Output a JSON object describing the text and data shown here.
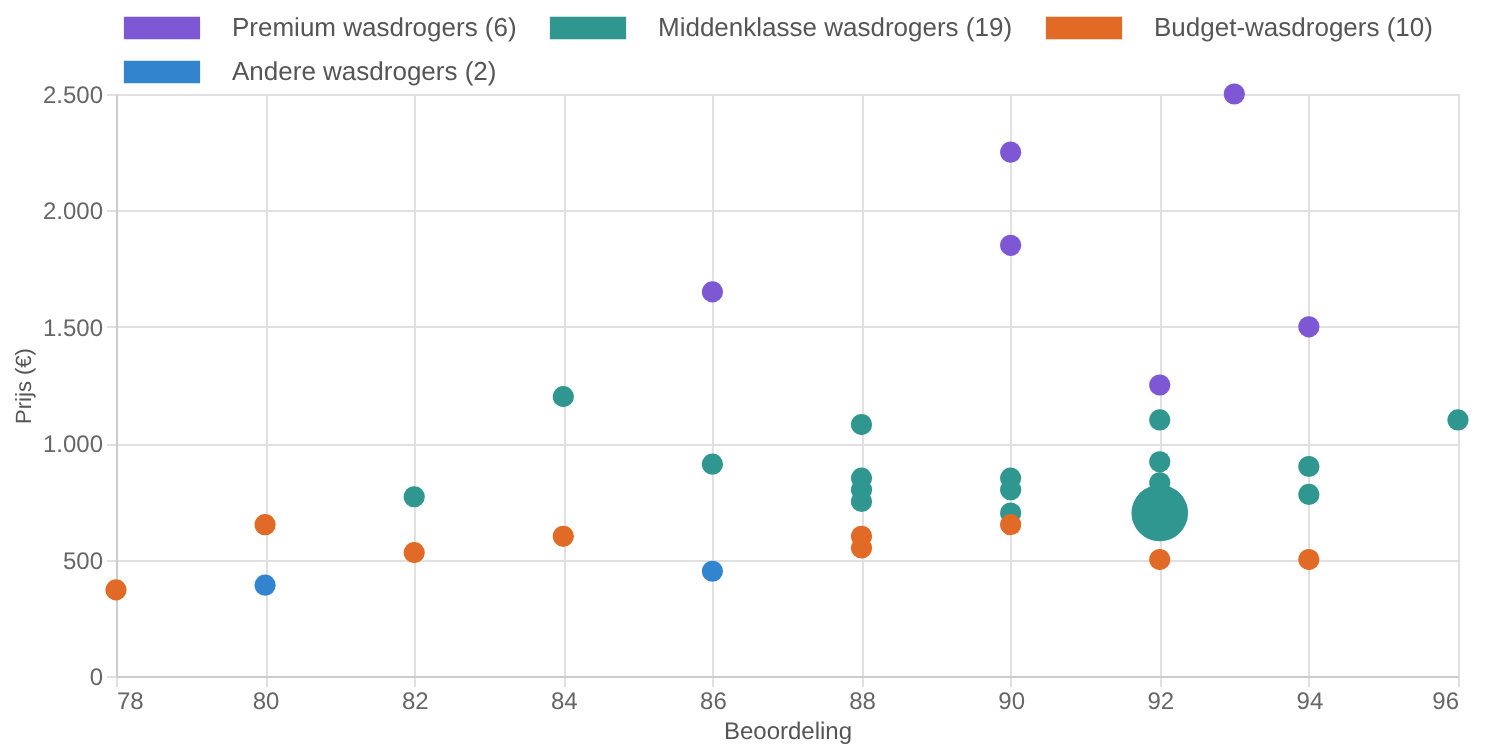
{
  "chart_data": {
    "type": "bubble",
    "xlabel": "Beoordeling",
    "ylabel": "Prijs (€)",
    "xlim": [
      78,
      96
    ],
    "xticks": [
      78,
      80,
      82,
      84,
      86,
      88,
      90,
      92,
      94,
      96
    ],
    "ylim": [
      0,
      2500
    ],
    "yticks": [
      0,
      500,
      {
        "value": 1000,
        "label": "1.000"
      },
      {
        "value": 1500,
        "label": "1.500"
      },
      {
        "value": 2000,
        "label": "2.000"
      },
      {
        "value": 2500,
        "label": "2.500"
      }
    ],
    "grid": true,
    "legend": "top",
    "marker": "circle",
    "series": [
      {
        "name": "Premium wasdrogers (6)",
        "color": "#7e57d5",
        "x": [
          86,
          90,
          90,
          92,
          93,
          94
        ],
        "values": [
          1650,
          2250,
          1850,
          1250,
          2500,
          1500
        ],
        "sizes": [
          0.14,
          0.14,
          0.14,
          0.14,
          0.14,
          0.14
        ]
      },
      {
        "name": "Middenklasse wasdrogers (19)",
        "color": "#2f9690",
        "x": [
          82,
          84,
          86,
          88,
          88,
          88,
          88,
          90,
          90,
          90,
          92,
          92,
          92,
          92,
          94,
          94,
          96
        ],
        "values": [
          770,
          1200,
          910,
          1080,
          850,
          800,
          750,
          850,
          800,
          700,
          1100,
          920,
          830,
          700,
          900,
          780,
          1100
        ],
        "sizes": [
          0.14,
          0.14,
          0.14,
          0.14,
          0.14,
          0.14,
          0.14,
          0.14,
          0.14,
          0.14,
          0.14,
          0.14,
          0.14,
          1,
          0.14,
          0.14,
          0.14
        ]
      },
      {
        "name": "Budget-wasdrogers (10)",
        "color": "#e06a26",
        "x": [
          78,
          80,
          82,
          84,
          88,
          88,
          90,
          92,
          94
        ],
        "values": [
          370,
          650,
          530,
          600,
          600,
          550,
          650,
          500,
          500
        ],
        "sizes": [
          0.14,
          0.14,
          0.14,
          0.14,
          0.14,
          0.14,
          0.14,
          0.14,
          0.14
        ]
      },
      {
        "name": "Andere wasdrogers (2)",
        "color": "#3384cf",
        "x": [
          80,
          86
        ],
        "values": [
          390,
          450
        ],
        "sizes": [
          0.14,
          0.14
        ]
      }
    ]
  }
}
